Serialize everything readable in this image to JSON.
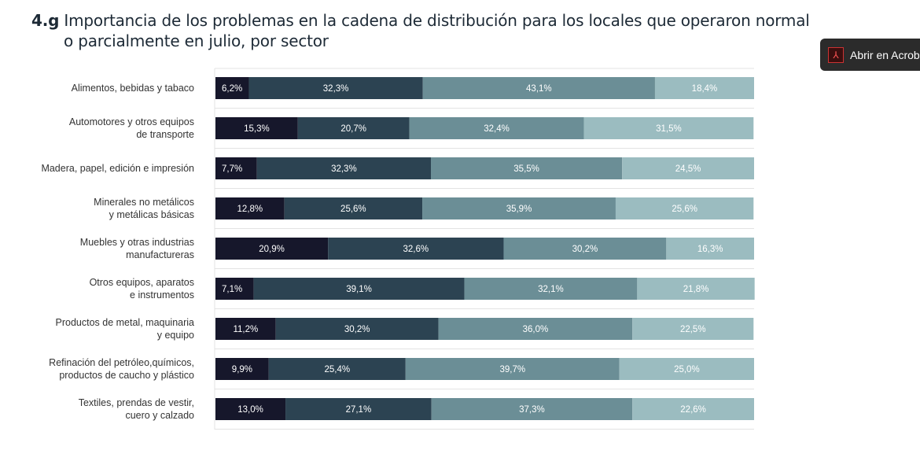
{
  "title": {
    "number": "4.g",
    "line1": "Importancia de los problemas en la cadena de distribución para los locales que operaron normal",
    "line2": "o parcialmente en julio, por sector"
  },
  "acrobat_button": {
    "label": "Abrir en Acrobat",
    "icon": "adobe-pdf-icon"
  },
  "chart_data": {
    "type": "bar",
    "orientation": "horizontal",
    "stacked": true,
    "percent": true,
    "categories": [
      [
        "Alimentos, bebidas y tabaco"
      ],
      [
        "Automotores y otros equipos",
        "de transporte"
      ],
      [
        "Madera, papel, edición e impresión"
      ],
      [
        "Minerales no metálicos",
        "y metálicas básicas"
      ],
      [
        "Muebles y otras industrias",
        "manufactureras"
      ],
      [
        "Otros equipos, aparatos",
        "e instrumentos"
      ],
      [
        "Productos de metal, maquinaria",
        "y equipo"
      ],
      [
        "Refinación del petróleo,químicos,",
        "productos de caucho y plástico"
      ],
      [
        "Textiles, prendas de vestir,",
        "cuero y calzado"
      ]
    ],
    "series": [
      {
        "color": "#16172b",
        "values": [
          6.2,
          15.3,
          7.7,
          12.8,
          20.9,
          7.1,
          11.2,
          9.9,
          13.0
        ],
        "labels": [
          "6,2%",
          "15,3%",
          "7,7%",
          "12,8%",
          "20,9%",
          "7,1%",
          "11,2%",
          "9,9%",
          "13,0%"
        ]
      },
      {
        "color": "#2c4352",
        "values": [
          32.3,
          20.7,
          32.3,
          25.6,
          32.6,
          39.1,
          30.2,
          25.4,
          27.1
        ],
        "labels": [
          "32,3%",
          "20,7%",
          "32,3%",
          "25,6%",
          "32,6%",
          "39,1%",
          "30,2%",
          "25,4%",
          "27,1%"
        ]
      },
      {
        "color": "#6b8e96",
        "values": [
          43.1,
          32.4,
          35.5,
          35.9,
          30.2,
          32.1,
          36.0,
          39.7,
          37.3
        ],
        "labels": [
          "43,1%",
          "32,4%",
          "35,5%",
          "35,9%",
          "30,2%",
          "32,1%",
          "36,0%",
          "39,7%",
          "37,3%"
        ]
      },
      {
        "color": "#9bbcc0",
        "values": [
          18.4,
          31.5,
          24.5,
          25.6,
          16.3,
          21.8,
          22.5,
          25.0,
          22.6
        ],
        "labels": [
          "18,4%",
          "31,5%",
          "24,5%",
          "25,6%",
          "16,3%",
          "21,8%",
          "22,5%",
          "25,0%",
          "22,6%"
        ]
      }
    ],
    "xlim": [
      0,
      100
    ],
    "grid": true
  }
}
